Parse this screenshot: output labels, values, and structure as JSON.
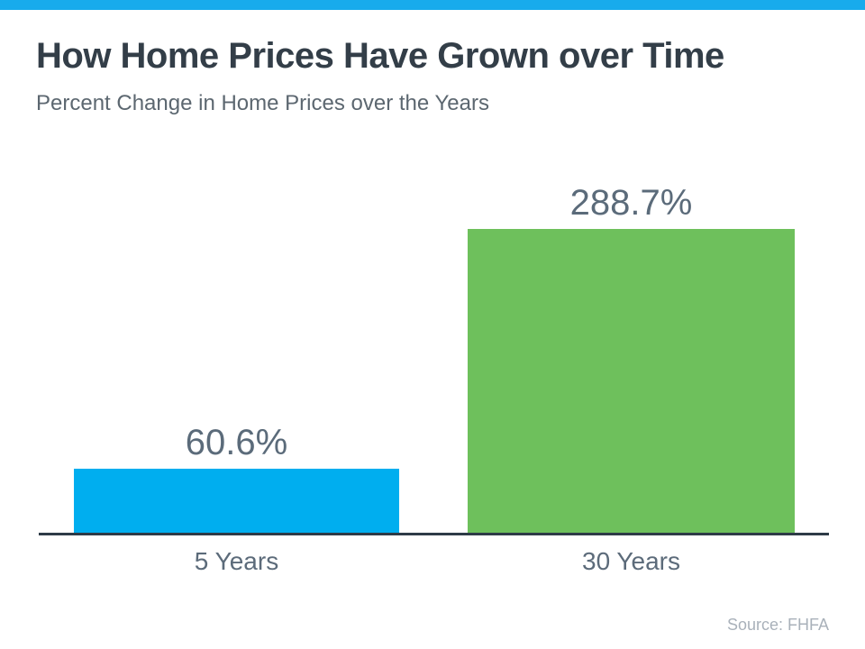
{
  "page": {
    "title": "How Home Prices Have Grown over Time",
    "subtitle": "Percent Change in Home Prices over the Years",
    "source": "Source: FHFA"
  },
  "colors": {
    "accent_bar": "#18ABEC",
    "bar_blue": "#00AEEF",
    "bar_green": "#6EC05C",
    "title_text": "#333E48",
    "subtitle_text": "#5C6770",
    "label_text": "#5B6B7A",
    "axis_line": "#2E3B47",
    "source_text": "#A9B1BA"
  },
  "chart_data": {
    "type": "bar",
    "title": "How Home Prices Have Grown over Time",
    "subtitle": "Percent Change in Home Prices over the Years",
    "categories": [
      "5 Years",
      "30 Years"
    ],
    "values": [
      60.6,
      288.7
    ],
    "value_labels": [
      "60.6%",
      "288.7%"
    ],
    "bar_colors": [
      "#00AEEF",
      "#6EC05C"
    ],
    "xlabel": "",
    "ylabel": "",
    "ylim": [
      0,
      300
    ],
    "grid": false,
    "legend": false,
    "annotations": [
      "Source: FHFA"
    ]
  }
}
